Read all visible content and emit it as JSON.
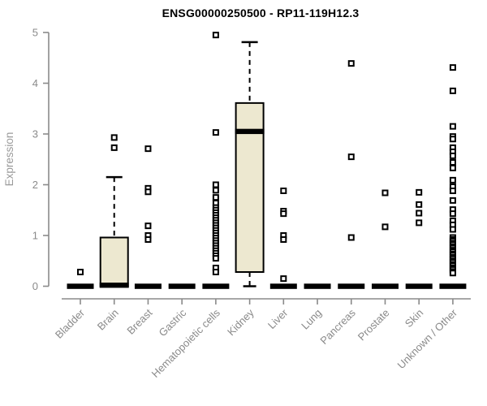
{
  "title": "ENSG00000250500 - RP11-119H12.3",
  "chart_data": {
    "type": "boxplot",
    "title": "ENSG00000250500 - RP11-119H12.3",
    "xlabel": "",
    "ylabel": "Expression",
    "ylim": [
      0,
      5
    ],
    "yticks": [
      0,
      1,
      2,
      3,
      4,
      5
    ],
    "grid": "off",
    "legend": "none",
    "categories": [
      "Bladder",
      "Brain",
      "Breast",
      "Gastric",
      "Hematopoietic cells",
      "Kidney",
      "Liver",
      "Lung",
      "Pancreas",
      "Prostate",
      "Skin",
      "Unknown / Other"
    ],
    "series": [
      {
        "name": "Bladder",
        "q1": 0,
        "median": 0,
        "q3": 0,
        "whisker_low": 0,
        "whisker_high": 0,
        "outliers": [
          0.28
        ]
      },
      {
        "name": "Brain",
        "q1": 0,
        "median": 0.02,
        "q3": 0.96,
        "whisker_low": 0,
        "whisker_high": 2.15,
        "outliers": [
          2.93,
          2.73
        ]
      },
      {
        "name": "Breast",
        "q1": 0,
        "median": 0,
        "q3": 0,
        "whisker_low": 0,
        "whisker_high": 0,
        "outliers": [
          2.71,
          1.93,
          1.86,
          1.19,
          1.0,
          0.92
        ]
      },
      {
        "name": "Gastric",
        "q1": 0,
        "median": 0,
        "q3": 0,
        "whisker_low": 0,
        "whisker_high": 0,
        "outliers": []
      },
      {
        "name": "Hematopoietic cells",
        "q1": 0,
        "median": 0,
        "q3": 0,
        "whisker_low": 0,
        "whisker_high": 0,
        "outliers": [
          4.95,
          3.03,
          2.0,
          1.89,
          1.75,
          1.64,
          1.55,
          1.5,
          1.45,
          1.4,
          1.35,
          1.3,
          1.25,
          1.2,
          1.15,
          1.1,
          1.05,
          1.0,
          0.95,
          0.9,
          0.85,
          0.8,
          0.75,
          0.7,
          0.65,
          0.6,
          0.55,
          0.36,
          0.28
        ]
      },
      {
        "name": "Kidney",
        "q1": 0.28,
        "median": 3.05,
        "q3": 3.61,
        "whisker_low": 0,
        "whisker_high": 4.81,
        "outliers": []
      },
      {
        "name": "Liver",
        "q1": 0,
        "median": 0,
        "q3": 0,
        "whisker_low": 0,
        "whisker_high": 0,
        "outliers": [
          1.88,
          1.48,
          1.43,
          1.0,
          0.92,
          0.15
        ]
      },
      {
        "name": "Lung",
        "q1": 0,
        "median": 0,
        "q3": 0,
        "whisker_low": 0,
        "whisker_high": 0,
        "outliers": []
      },
      {
        "name": "Pancreas",
        "q1": 0,
        "median": 0,
        "q3": 0,
        "whisker_low": 0,
        "whisker_high": 0,
        "outliers": [
          4.39,
          2.55,
          0.96
        ]
      },
      {
        "name": "Prostate",
        "q1": 0,
        "median": 0,
        "q3": 0,
        "whisker_low": 0,
        "whisker_high": 0,
        "outliers": [
          1.84,
          1.17
        ]
      },
      {
        "name": "Skin",
        "q1": 0,
        "median": 0,
        "q3": 0,
        "whisker_low": 0,
        "whisker_high": 0,
        "outliers": [
          1.85,
          1.61,
          1.44,
          1.25
        ]
      },
      {
        "name": "Unknown / Other",
        "q1": 0,
        "median": 0,
        "q3": 0,
        "whisker_low": 0,
        "whisker_high": 0,
        "outliers": [
          4.31,
          3.85,
          3.15,
          2.95,
          2.9,
          2.73,
          2.65,
          2.57,
          2.44,
          2.33,
          2.09,
          1.96,
          1.88,
          1.69,
          1.51,
          1.43,
          1.29,
          1.21,
          1.12,
          0.96,
          0.92,
          0.89,
          0.85,
          0.82,
          0.78,
          0.75,
          0.71,
          0.68,
          0.64,
          0.61,
          0.57,
          0.54,
          0.5,
          0.47,
          0.43,
          0.4,
          0.36,
          0.33,
          0.29,
          0.26
        ]
      }
    ],
    "colors": {
      "box_fill": "#ede8d0",
      "box_stroke": "#000000",
      "median": "#000000",
      "outlier_stroke": "#000000",
      "outlier_fill": "#ffffff",
      "axis": "#8a8a8a",
      "tick_label": "#8a8a8a",
      "axis_title": "#9a9a9a",
      "title": "#000000",
      "background": "#ffffff"
    }
  }
}
